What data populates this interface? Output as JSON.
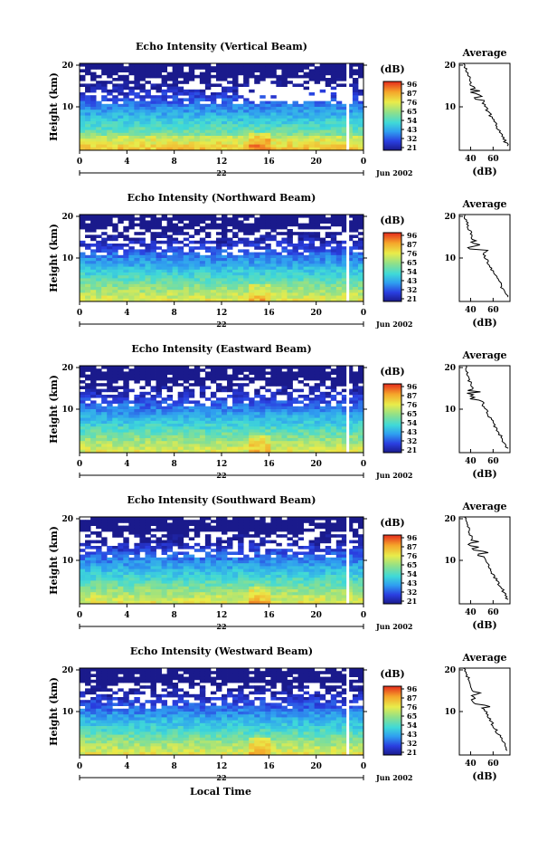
{
  "chart_data": [
    {
      "type": "heatmap",
      "title": "Echo Intensity (Vertical Beam)",
      "ylabel": "Height (km)",
      "yticks": [
        "20",
        "10"
      ],
      "xticks": [
        "0",
        "4",
        "8",
        "12",
        "16",
        "20",
        "0"
      ],
      "date_label": "22",
      "month_label": "Jun 2002",
      "colorbar": {
        "unit": "(dB)",
        "ticks": [
          "96",
          "87",
          "76",
          "65",
          "54",
          "43",
          "32",
          "21"
        ]
      },
      "profile": {
        "title": "Average",
        "xlabel": "(dB)",
        "xticks": [
          "40",
          "60"
        ],
        "yticks": [
          "20",
          "10"
        ]
      }
    },
    {
      "type": "heatmap",
      "title": "Echo Intensity (Northward Beam)",
      "ylabel": "Height (km)",
      "yticks": [
        "20",
        "10"
      ],
      "xticks": [
        "0",
        "4",
        "8",
        "12",
        "16",
        "20",
        "0"
      ],
      "date_label": "22",
      "month_label": "Jun 2002",
      "colorbar": {
        "unit": "(dB)",
        "ticks": [
          "96",
          "87",
          "76",
          "65",
          "54",
          "43",
          "32",
          "21"
        ]
      },
      "profile": {
        "title": "Average",
        "xlabel": "(dB)",
        "xticks": [
          "40",
          "60"
        ],
        "yticks": [
          "20",
          "10"
        ]
      }
    },
    {
      "type": "heatmap",
      "title": "Echo Intensity (Eastward Beam)",
      "ylabel": "Height (km)",
      "yticks": [
        "20",
        "10"
      ],
      "xticks": [
        "0",
        "4",
        "8",
        "12",
        "16",
        "20",
        "0"
      ],
      "date_label": "22",
      "month_label": "Jun 2002",
      "colorbar": {
        "unit": "(dB)",
        "ticks": [
          "96",
          "87",
          "76",
          "65",
          "54",
          "43",
          "32",
          "21"
        ]
      },
      "profile": {
        "title": "Average",
        "xlabel": "(dB)",
        "xticks": [
          "40",
          "60"
        ],
        "yticks": [
          "20",
          "10"
        ]
      }
    },
    {
      "type": "heatmap",
      "title": "Echo Intensity (Southward Beam)",
      "ylabel": "Height (km)",
      "yticks": [
        "20",
        "10"
      ],
      "xticks": [
        "0",
        "4",
        "8",
        "12",
        "16",
        "20",
        "0"
      ],
      "date_label": "22",
      "month_label": "Jun 2002",
      "colorbar": {
        "unit": "(dB)",
        "ticks": [
          "96",
          "87",
          "76",
          "65",
          "54",
          "43",
          "32",
          "21"
        ]
      },
      "profile": {
        "title": "Average",
        "xlabel": "(dB)",
        "xticks": [
          "40",
          "60"
        ],
        "yticks": [
          "20",
          "10"
        ]
      }
    },
    {
      "type": "heatmap",
      "title": "Echo Intensity (Westward Beam)",
      "ylabel": "Height (km)",
      "yticks": [
        "20",
        "10"
      ],
      "xticks": [
        "0",
        "4",
        "8",
        "12",
        "16",
        "20",
        "0"
      ],
      "date_label": "22",
      "month_label": "Jun 2002",
      "colorbar": {
        "unit": "(dB)",
        "ticks": [
          "96",
          "87",
          "76",
          "65",
          "54",
          "43",
          "32",
          "21"
        ]
      },
      "profile": {
        "title": "Average",
        "xlabel": "(dB)",
        "xticks": [
          "40",
          "60"
        ],
        "yticks": [
          "20",
          "10"
        ]
      }
    }
  ],
  "footer": {
    "xlabel": "Local Time"
  }
}
